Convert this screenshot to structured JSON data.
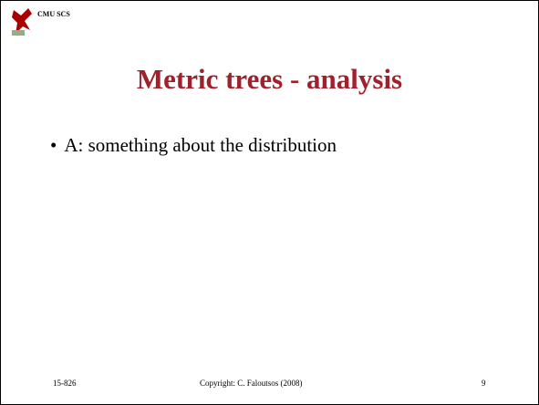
{
  "header": {
    "org": "CMU SCS"
  },
  "title": "Metric trees - analysis",
  "bullets": [
    "A: something about the distribution"
  ],
  "footer": {
    "course": "15-826",
    "copyright": "Copyright: C. Faloutsos (2008)",
    "page": "9"
  }
}
